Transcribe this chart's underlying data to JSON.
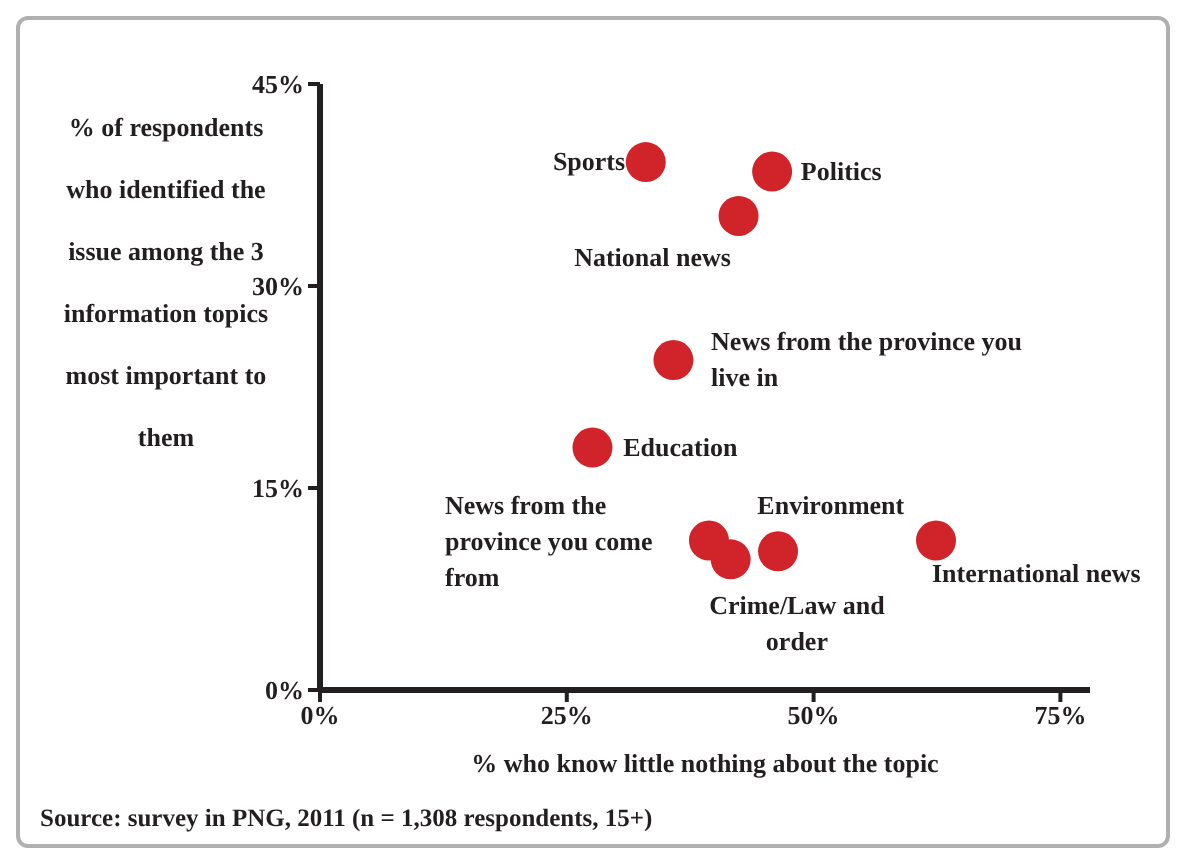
{
  "chart_data": {
    "type": "scatter",
    "xlabel": "% who know little nothing about the topic",
    "ylabel": "% of respondents who identified the issue among the 3 information topics most important to them",
    "x": [
      33,
      45.8,
      42.4,
      35.8,
      27.6,
      39.4,
      41.6,
      46.4,
      62.4
    ],
    "values": [
      39.2,
      38.5,
      35.2,
      24.5,
      18,
      11.1,
      9.7,
      10.3,
      11.1
    ],
    "color": "#d0232a",
    "marker": "circle",
    "grid": false,
    "legend": false,
    "xlim": [
      0,
      78
    ],
    "xticks": [
      {
        "value": 0,
        "label": "0%"
      },
      {
        "value": 25,
        "label": "25%"
      },
      {
        "value": 50,
        "label": "50%"
      },
      {
        "value": 75,
        "label": "75%"
      }
    ],
    "ylim": [
      0,
      45
    ],
    "yticks": [
      {
        "value": 0,
        "label": "0%"
      },
      {
        "value": 15,
        "label": "15%"
      },
      {
        "value": 30,
        "label": "30%"
      },
      {
        "value": 45,
        "label": "45%"
      }
    ],
    "annotations": [
      {
        "text": "Sports",
        "x": 33,
        "y": 39.2
      },
      {
        "text": "Politics",
        "x": 45.8,
        "y": 38.5
      },
      {
        "text": "National news",
        "x": 42.4,
        "y": 35.2
      },
      {
        "text": "News from the province you live in",
        "x": 35.8,
        "y": 24.5
      },
      {
        "text": "Education",
        "x": 27.6,
        "y": 18
      },
      {
        "text": "News from the province you come from",
        "x": 39.4,
        "y": 11.1
      },
      {
        "text": "Crime/Law and order",
        "x": 41.6,
        "y": 9.7
      },
      {
        "text": "Environment",
        "x": 46.4,
        "y": 10.3
      },
      {
        "text": "International news",
        "x": 62.4,
        "y": 11.1
      },
      "Source: survey in PNG, 2011 (n = 1,308 respondents, 15+)"
    ]
  }
}
